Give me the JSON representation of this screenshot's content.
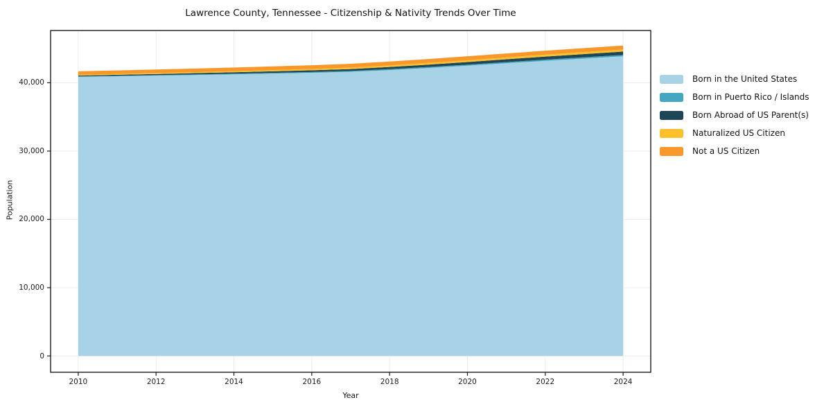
{
  "chart_data": {
    "type": "area",
    "stacked": true,
    "title": "Lawrence County, Tennessee - Citizenship & Nativity Trends Over Time",
    "xlabel": "Year",
    "ylabel": "Population",
    "x": [
      2010,
      2011,
      2012,
      2013,
      2014,
      2015,
      2016,
      2017,
      2018,
      2019,
      2020,
      2021,
      2022,
      2023,
      2024
    ],
    "series": [
      {
        "name": "Born in the United States",
        "color": "#a8d3e7",
        "values": [
          40870,
          40950,
          41040,
          41130,
          41230,
          41340,
          41460,
          41600,
          41860,
          42160,
          42500,
          42860,
          43210,
          43550,
          43880
        ]
      },
      {
        "name": "Born in Puerto Rico / Islands",
        "color": "#44a6c1",
        "values": [
          60,
          70,
          80,
          90,
          100,
          110,
          120,
          130,
          140,
          150,
          160,
          170,
          180,
          190,
          200
        ]
      },
      {
        "name": "Born Abroad of US Parent(s)",
        "color": "#1f4657",
        "values": [
          130,
          150,
          170,
          190,
          210,
          230,
          250,
          280,
          310,
          350,
          380,
          410,
          440,
          470,
          490
        ]
      },
      {
        "name": "Naturalized US Citizen",
        "color": "#fcc02c",
        "values": [
          100,
          115,
          130,
          145,
          160,
          175,
          190,
          210,
          230,
          250,
          265,
          275,
          285,
          295,
          300
        ]
      },
      {
        "name": "Not a US Citizen",
        "color": "#f8982a",
        "values": [
          520,
          525,
          530,
          535,
          540,
          545,
          550,
          560,
          570,
          575,
          580,
          580,
          580,
          580,
          580
        ]
      }
    ],
    "xticks": [
      2010,
      2012,
      2014,
      2016,
      2018,
      2020,
      2022,
      2024
    ],
    "yticks": [
      0,
      10000,
      20000,
      30000,
      40000
    ],
    "xlim": [
      2009.29,
      2024.71
    ],
    "ylim": [
      -2385,
      47655
    ],
    "grid": true,
    "legend_position": "right",
    "colors": {
      "grid": "#ebebeb",
      "frame": "#1a1a1a",
      "tick": "#1a1a1a",
      "background": "#ffffff"
    }
  }
}
